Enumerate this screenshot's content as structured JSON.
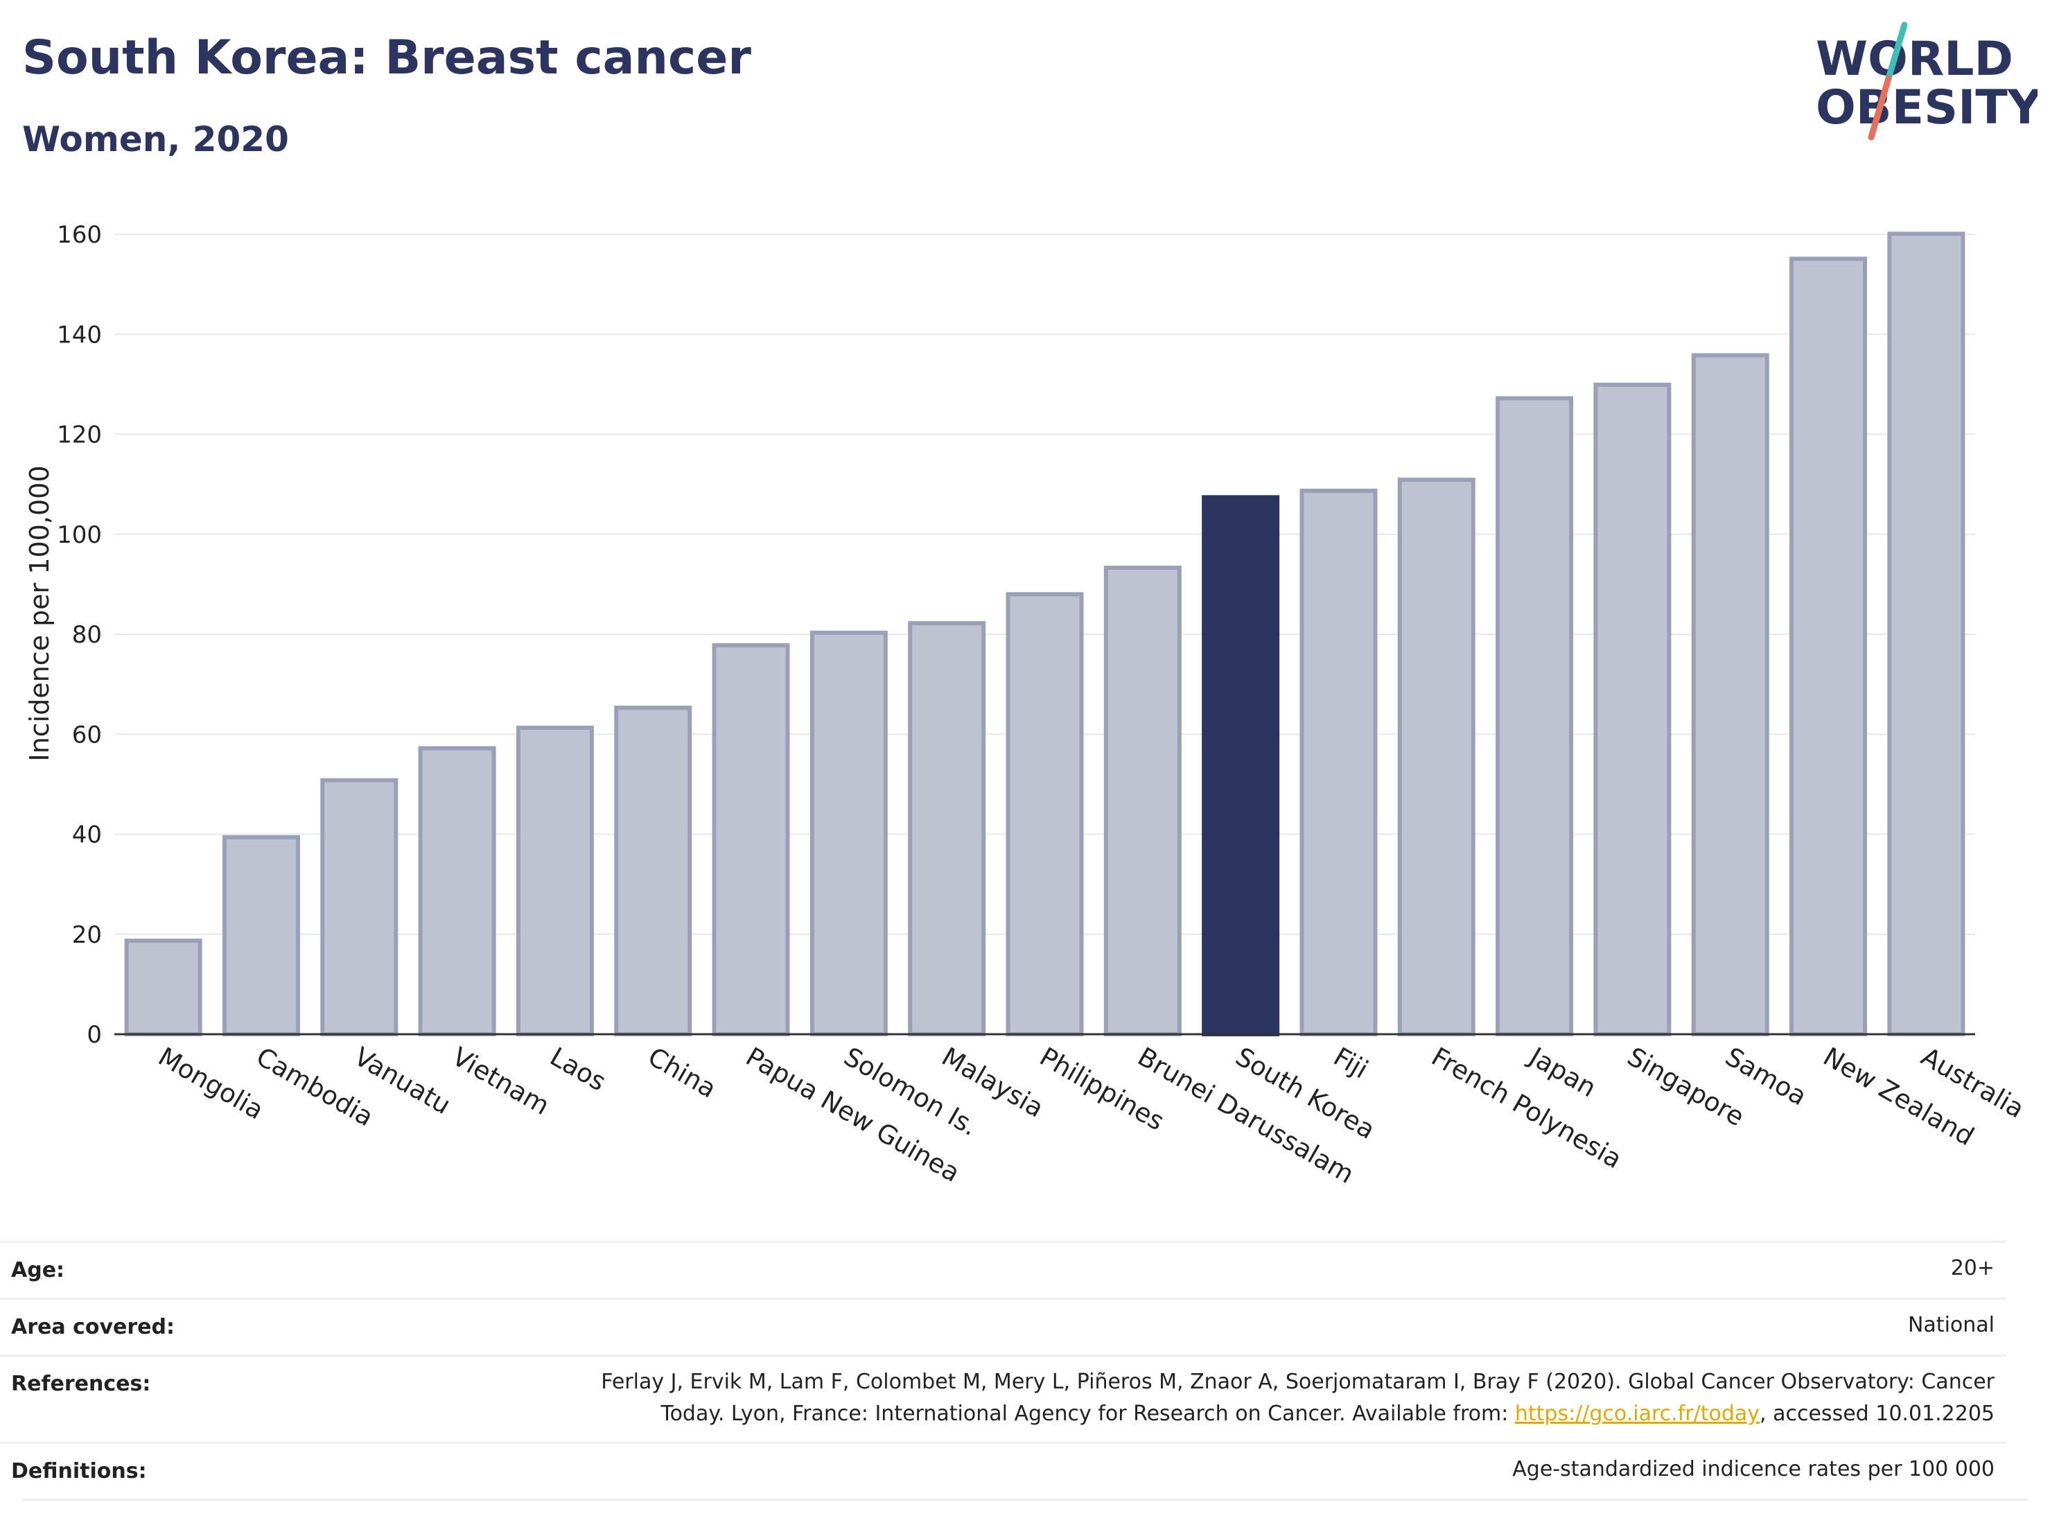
{
  "header": {
    "title": "South Korea: Breast cancer",
    "subtitle": "Women, 2020"
  },
  "logo": {
    "line1": "WORLD",
    "line2": "OBESITY",
    "accent_colors": [
      "#3cbfb4",
      "#e8705a"
    ]
  },
  "chart_data": {
    "type": "bar",
    "title": "South Korea: Breast cancer",
    "subtitle": "Women, 2020",
    "ylabel": "Incidence per 100,000",
    "xlabel": "",
    "ylim": [
      0,
      160
    ],
    "yticks": [
      0,
      20,
      40,
      60,
      80,
      100,
      120,
      140,
      160
    ],
    "grid": true,
    "highlight": "South Korea",
    "colors": {
      "bar": "#bfc2d0",
      "bar_edge": "#9aa0b8",
      "highlight": "#2b3560"
    },
    "categories": [
      "Mongolia",
      "Cambodia",
      "Vanuatu",
      "Vietnam",
      "Laos",
      "China",
      "Papua New Guinea",
      "Solomon Is.",
      "Malaysia",
      "Philippines",
      "Brunei Darussalam",
      "South Korea",
      "Fiji",
      "French Polynesia",
      "Japan",
      "Singapore",
      "Samoa",
      "New Zealand",
      "Australia"
    ],
    "values": [
      18.7,
      39.4,
      50.8,
      57.2,
      61.3,
      65.3,
      77.8,
      80.3,
      82.2,
      88.0,
      93.3,
      107.4,
      108.7,
      110.9,
      127.2,
      129.9,
      135.8,
      155.1,
      160.1
    ]
  },
  "meta": {
    "age_label": "Age:",
    "age_value": "20+",
    "area_label": "Area covered:",
    "area_value": "National",
    "references_label": "References:",
    "references_line1": "Ferlay J, Ervik M, Lam F, Colombet M, Mery L, Piñeros M, Znaor A, Soerjomataram I, Bray F (2020). Global Cancer Observatory: Cancer",
    "references_line2_pre": "Today. Lyon, France: International Agency for Research on Cancer. Available from: ",
    "references_link": "https://gco.iarc.fr/today",
    "references_line2_post": ", accessed 10.01.2205",
    "definitions_label": "Definitions:",
    "definitions_value": "Age-standardized indicence rates per 100 000"
  }
}
